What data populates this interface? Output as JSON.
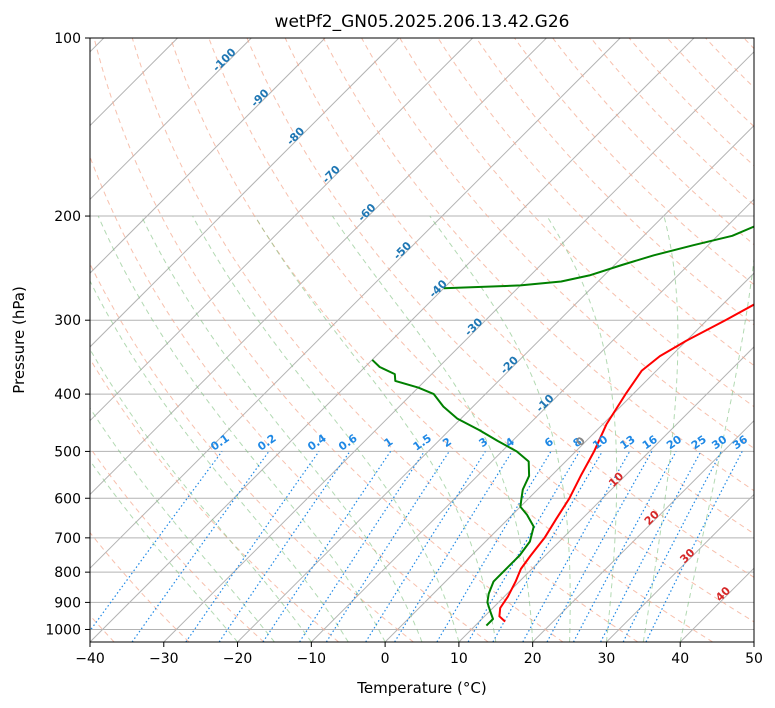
{
  "chart_data": {
    "type": "line",
    "title": "wetPf2_GN05.2025.206.13.42.G26",
    "xlabel": "Temperature (°C)",
    "ylabel": "Pressure (hPa)",
    "xlim": [
      -40,
      50
    ],
    "ylim": [
      1050,
      100
    ],
    "y_scale": "log",
    "grid": true,
    "x_ticks": [
      "−40",
      "−30",
      "−20",
      "−10",
      "0",
      "10",
      "20",
      "30",
      "40",
      "50"
    ],
    "y_ticks": [
      "100",
      "200",
      "300",
      "400",
      "500",
      "600",
      "700",
      "800",
      "900",
      "1000"
    ],
    "series": [
      {
        "color": "#ff0000",
        "points": [
          [
            13.5,
            970
          ],
          [
            12.0,
            950
          ],
          [
            11.0,
            920
          ],
          [
            10.5,
            880
          ],
          [
            9.5,
            830
          ],
          [
            8.5,
            790
          ],
          [
            8.0,
            750
          ],
          [
            7.5,
            700
          ],
          [
            6.5,
            650
          ],
          [
            5.5,
            600
          ],
          [
            4.0,
            550
          ],
          [
            2.5,
            500
          ],
          [
            0.5,
            450
          ],
          [
            -1.0,
            400
          ],
          [
            -2.0,
            365
          ],
          [
            -1.5,
            345
          ],
          [
            0.0,
            325
          ],
          [
            2.5,
            300
          ],
          [
            4.5,
            280
          ],
          [
            6.5,
            260
          ],
          [
            9.0,
            240
          ],
          [
            11.5,
            220
          ],
          [
            13.5,
            200
          ],
          [
            15.5,
            180
          ],
          [
            17.5,
            160
          ],
          [
            18.5,
            145
          ],
          [
            19.0,
            130
          ],
          [
            19.5,
            120
          ],
          [
            21.0,
            112
          ],
          [
            23.5,
            103
          ],
          [
            24.5,
            100
          ]
        ]
      },
      {
        "color": "#008000",
        "points": [
          [
            11.5,
            985
          ],
          [
            11.5,
            960
          ],
          [
            10.0,
            930
          ],
          [
            8.5,
            900
          ],
          [
            7.5,
            870
          ],
          [
            6.5,
            830
          ],
          [
            6.5,
            790
          ],
          [
            6.5,
            750
          ],
          [
            6.0,
            710
          ],
          [
            4.5,
            670
          ],
          [
            2.0,
            640
          ],
          [
            0.0,
            620
          ],
          [
            -1.0,
            600
          ],
          [
            -2.0,
            580
          ],
          [
            -3.0,
            550
          ],
          [
            -5.0,
            520
          ],
          [
            -8.0,
            500
          ],
          [
            -12.0,
            480
          ],
          [
            -16.0,
            460
          ],
          [
            -20.5,
            440
          ],
          [
            -24.0,
            420
          ],
          [
            -27.0,
            400
          ],
          [
            -30.0,
            390
          ],
          [
            -34.0,
            380
          ],
          [
            -35.0,
            370
          ],
          [
            -38.0,
            360
          ],
          [
            -40.0,
            350
          ]
        ]
      },
      {
        "color": "#008000",
        "points": [
          [
            -40.0,
            265
          ],
          [
            -30.0,
            262
          ],
          [
            -25.0,
            258
          ],
          [
            -22.0,
            252
          ],
          [
            -19.0,
            242
          ],
          [
            -16.0,
            233
          ],
          [
            -12.0,
            224
          ],
          [
            -8.0,
            216
          ],
          [
            -6.0,
            207
          ],
          [
            -5.0,
            195
          ],
          [
            -5.0,
            183
          ],
          [
            -6.5,
            170
          ],
          [
            -7.5,
            158
          ],
          [
            -6.5,
            147
          ],
          [
            -4.0,
            140
          ],
          [
            -1.0,
            130
          ],
          [
            1.0,
            120
          ],
          [
            2.5,
            110
          ],
          [
            4.5,
            102
          ],
          [
            5.0,
            100
          ]
        ]
      }
    ],
    "dry_adiabat_labels": [
      "-100",
      "-90",
      "-80",
      "-70",
      "-60",
      "-50",
      "-40",
      "-30",
      "-20",
      "-10",
      "0",
      "10",
      "20",
      "30",
      "40"
    ],
    "mixing_ratio_labels": [
      "0.1",
      "0.2",
      "0.4",
      "0.6",
      "1",
      "1.5",
      "2",
      "3",
      "4",
      "6",
      "8",
      "10",
      "13",
      "16",
      "20",
      "25",
      "30",
      "36"
    ]
  }
}
